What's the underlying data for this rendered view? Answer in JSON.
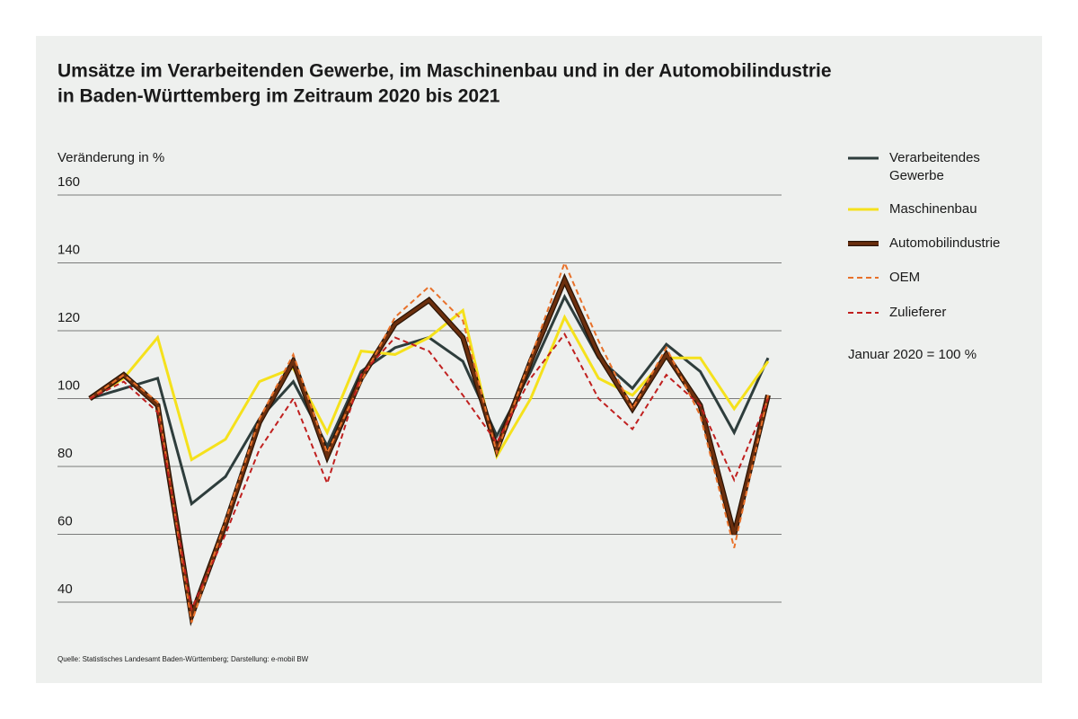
{
  "chart_data": {
    "type": "line",
    "title": [
      "Umsätze im Verarbeitenden Gewerbe, im Maschinenbau und in der Automobilindustrie",
      "in Baden-Württemberg im Zeitraum 2020 bis 2021"
    ],
    "y_label": "Veränderung in %",
    "note": "Januar 2020 = 100 %",
    "source": "Quelle: Statistisches Landesamt Baden-Württemberg; Darstellung: e-mobil BW",
    "categories": [
      null,
      null,
      null,
      null,
      null,
      null,
      null,
      null,
      null,
      null,
      null,
      null,
      null,
      null,
      null,
      null,
      null,
      null,
      null,
      null,
      null
    ],
    "ylim": [
      40,
      160
    ],
    "yticks": [
      40,
      60,
      80,
      100,
      120,
      140,
      160
    ],
    "grid": true,
    "series": [
      {
        "name": [
          "Verarbeitendes",
          "Gewerbe"
        ],
        "color": "#2e3d3c",
        "style": "solid",
        "values": [
          100,
          103,
          106,
          69,
          77,
          94,
          105,
          86,
          108,
          115,
          118,
          111,
          89,
          108,
          130,
          112,
          103,
          116,
          108,
          90,
          112
        ]
      },
      {
        "name": "Maschinenbau",
        "color": "#f5e11c",
        "style": "solid",
        "values": [
          100,
          106,
          118,
          82,
          88,
          105,
          109,
          90,
          114,
          113,
          118,
          126,
          83,
          100,
          124,
          106,
          101,
          112,
          112,
          97,
          111
        ]
      },
      {
        "name": "Automobilindustrie",
        "color": "#6b2f0e",
        "style": "outlined",
        "values": [
          100,
          107,
          98,
          36,
          63,
          93,
          111,
          83,
          106,
          122,
          129,
          118,
          85,
          111,
          135,
          113,
          97,
          113,
          98,
          60,
          101
        ]
      },
      {
        "name": "OEM",
        "color": "#e8712a",
        "style": "dashed",
        "values": [
          100,
          107,
          99,
          34,
          64,
          94,
          113,
          84,
          105,
          124,
          133,
          123,
          84,
          112,
          140,
          117,
          97,
          115,
          95,
          56,
          101
        ]
      },
      {
        "name": "Zulieferer",
        "color": "#c0201f",
        "style": "dashed",
        "values": [
          100,
          105,
          96,
          38,
          60,
          85,
          100,
          75,
          107,
          118,
          114,
          101,
          87,
          106,
          119,
          100,
          91,
          107,
          98,
          76,
          100
        ]
      }
    ]
  }
}
